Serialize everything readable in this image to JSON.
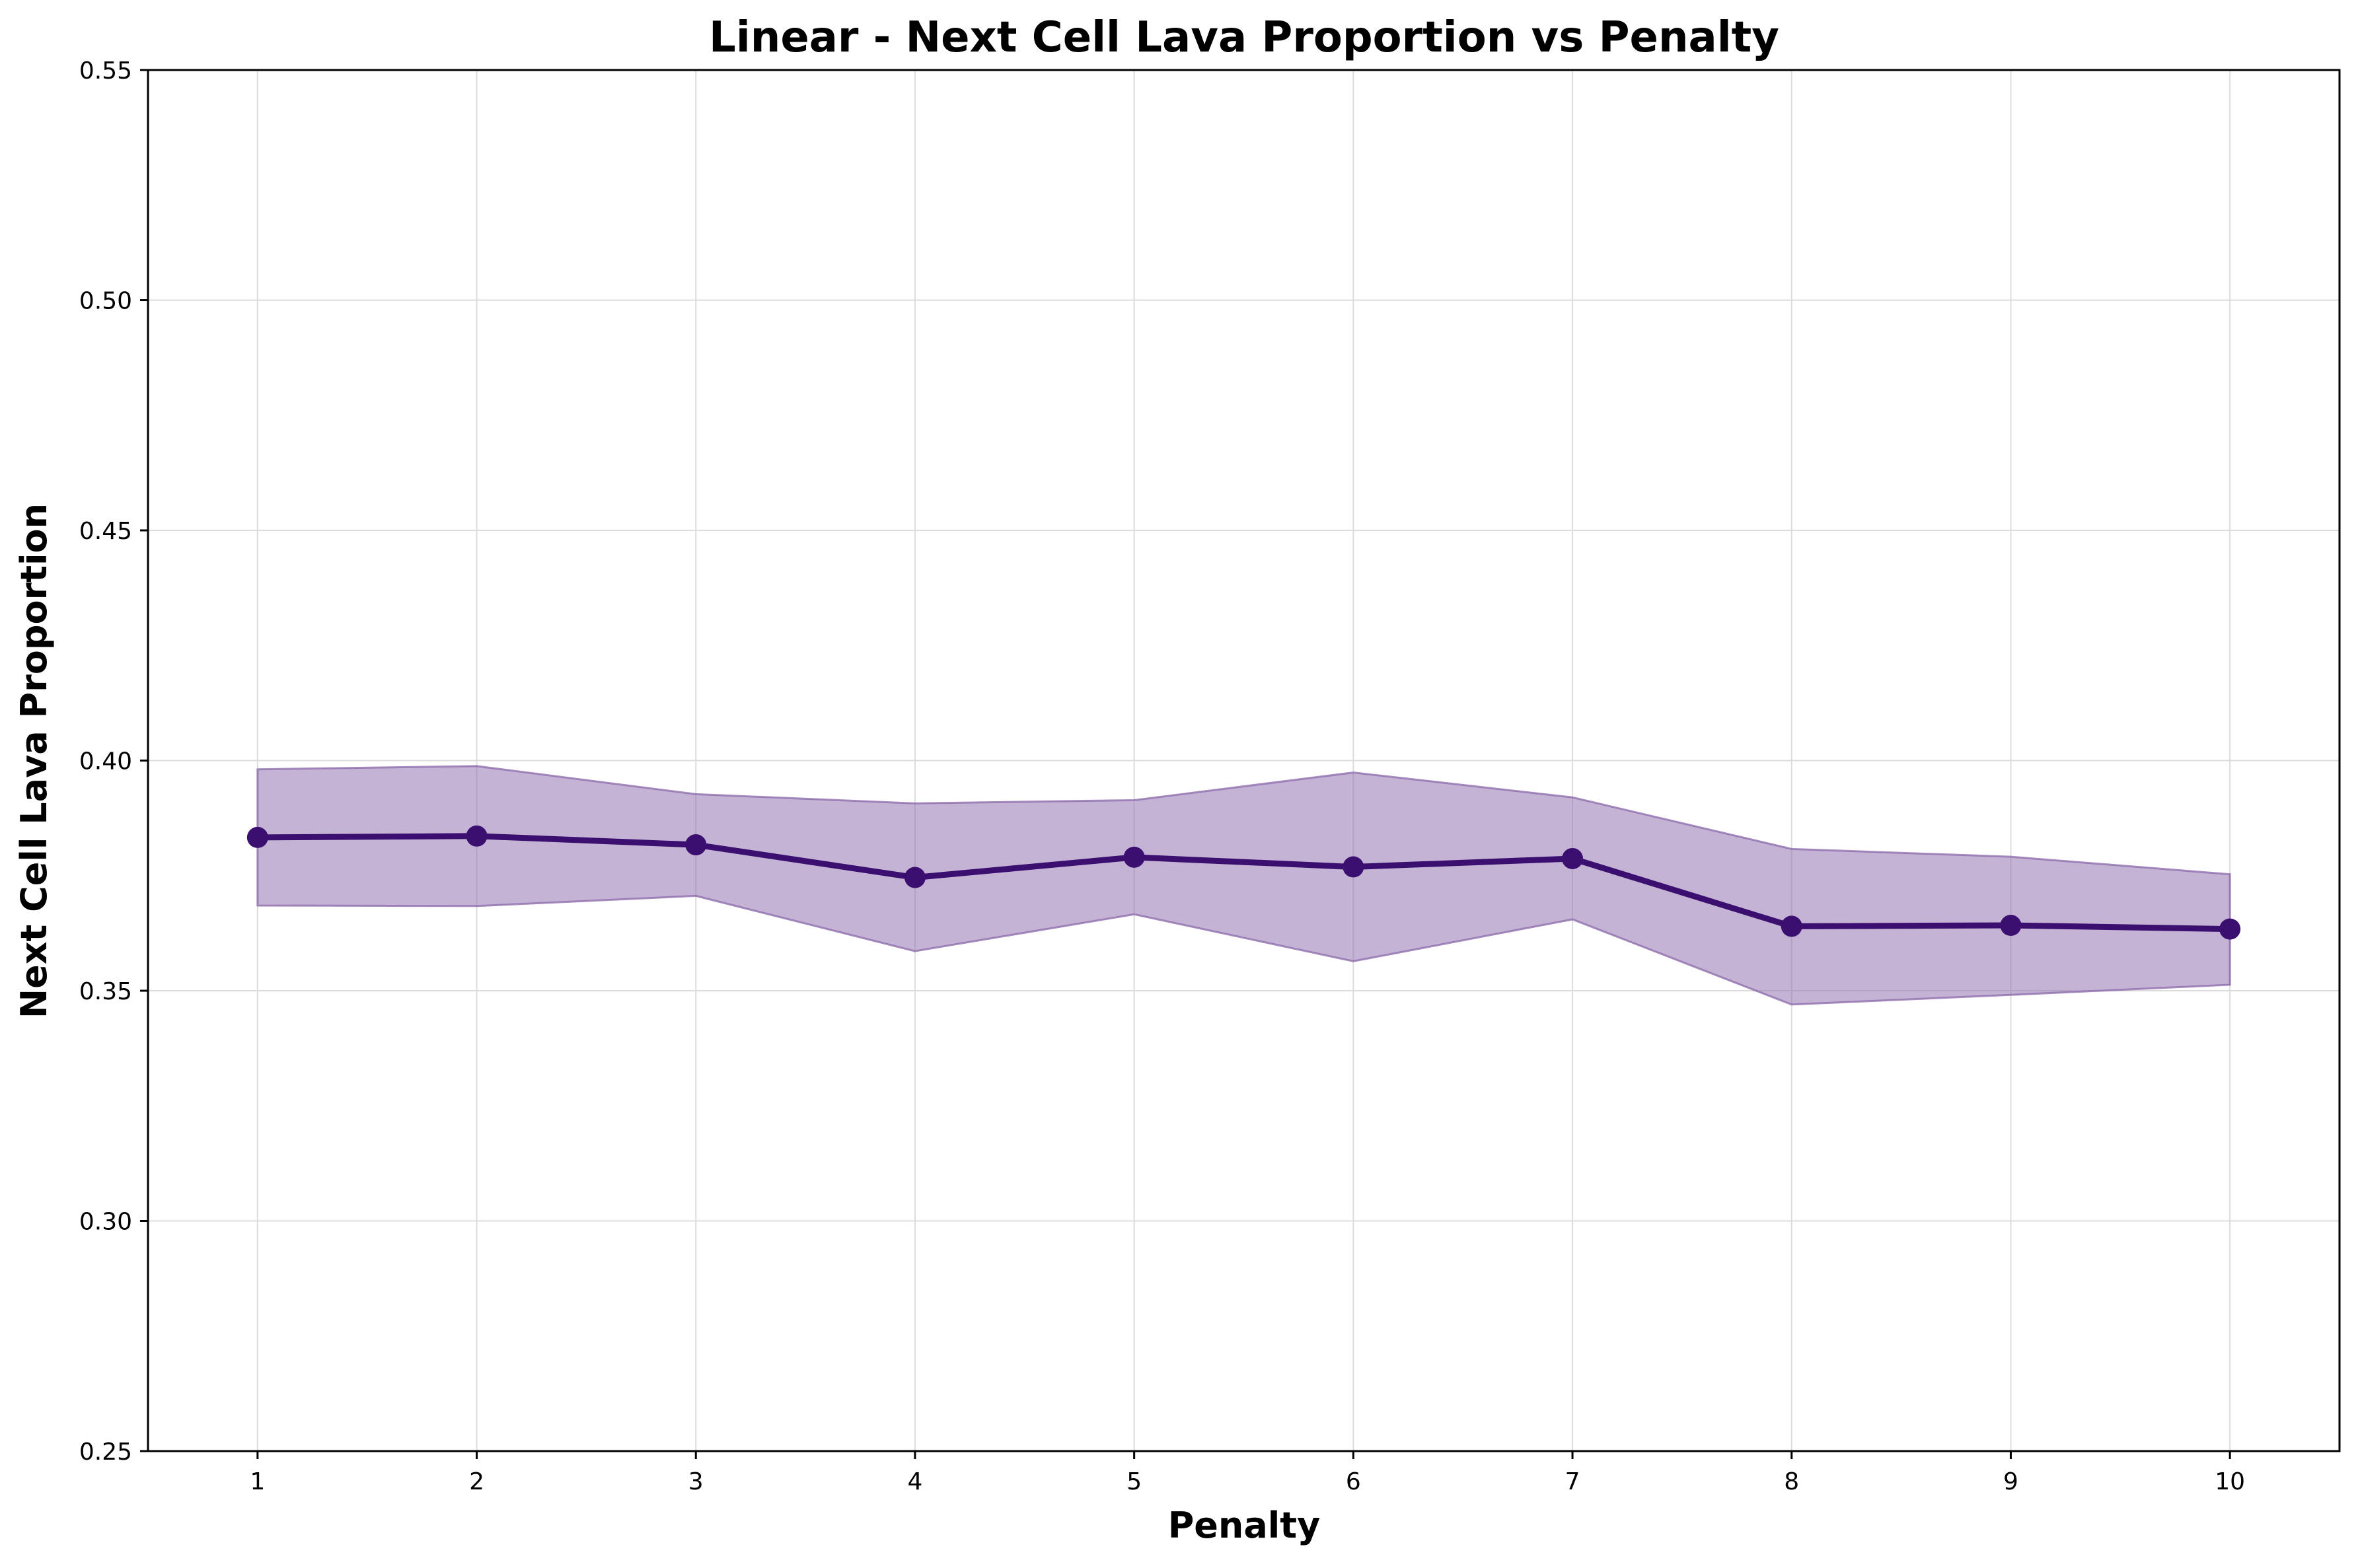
{
  "chart_data": {
    "type": "line",
    "title": "Linear - Next Cell Lava Proportion vs Penalty",
    "xlabel": "Penalty",
    "ylabel": "Next Cell Lava Proportion",
    "xlim": [
      0.5,
      10.5
    ],
    "ylim": [
      0.25,
      0.55
    ],
    "xticks": [
      1,
      2,
      3,
      4,
      5,
      6,
      7,
      8,
      9,
      10
    ],
    "yticks": [
      0.25,
      0.3,
      0.35,
      0.4,
      0.45,
      0.5,
      0.55
    ],
    "ytick_labels": [
      "0.25",
      "0.30",
      "0.35",
      "0.40",
      "0.45",
      "0.50",
      "0.55"
    ],
    "grid": true,
    "series": [
      {
        "x": [
          1,
          2,
          3,
          4,
          5,
          6,
          7,
          8,
          9,
          10
        ],
        "values": [
          0.3833,
          0.3836,
          0.3817,
          0.3746,
          0.379,
          0.3769,
          0.3787,
          0.364,
          0.3642,
          0.3634
        ],
        "lower": [
          0.3685,
          0.3684,
          0.3706,
          0.3586,
          0.3666,
          0.3564,
          0.3655,
          0.347,
          0.3491,
          0.3513
        ],
        "upper": [
          0.3981,
          0.3988,
          0.3927,
          0.3907,
          0.3914,
          0.3974,
          0.392,
          0.3808,
          0.3791,
          0.3753
        ],
        "color": "#3b0f70",
        "band_color": "#8a68a9"
      }
    ]
  }
}
